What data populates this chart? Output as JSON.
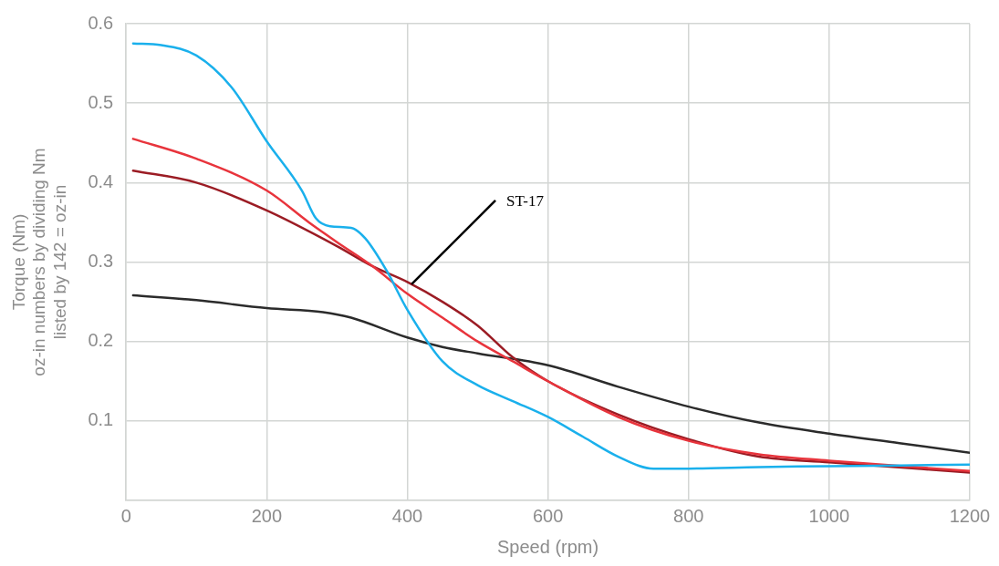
{
  "chart_data": {
    "type": "line",
    "xlabel": "Speed (rpm)",
    "ylabel": "Torque (Nm)\noz-in numbers by dividing Nm\nlisted by 142 = oz-in",
    "xlim": [
      0,
      1200
    ],
    "xticks": [
      0,
      200,
      400,
      600,
      800,
      1000,
      1200
    ],
    "ylim": [
      0,
      0.6
    ],
    "yticks": [
      {
        "value": 0,
        "label": null
      },
      0.1,
      0.2,
      0.3,
      0.4,
      0.5,
      0.6
    ],
    "grid": true,
    "legend": false,
    "marker": "none",
    "line_style": "solid",
    "annotations": [
      {
        "text": "ST-17",
        "x": 406,
        "y": 0.272
      }
    ],
    "series": [
      {
        "color": "#1ab0ec",
        "x": [
          10,
          50,
          100,
          150,
          200,
          250,
          270,
          290,
          320,
          340,
          370,
          400,
          450,
          500,
          550,
          600,
          650,
          700,
          750,
          800,
          900,
          1000,
          1200
        ],
        "values": [
          0.575,
          0.573,
          0.56,
          0.52,
          0.452,
          0.39,
          0.355,
          0.345,
          0.343,
          0.33,
          0.29,
          0.24,
          0.175,
          0.145,
          0.125,
          0.105,
          0.08,
          0.055,
          0.04,
          0.04,
          0.042,
          0.043,
          0.045
        ]
      },
      {
        "color": "#e8343c",
        "x": [
          10,
          100,
          200,
          260,
          300,
          350,
          400,
          450,
          500,
          550,
          600,
          700,
          800,
          900,
          1000,
          1200
        ],
        "values": [
          0.455,
          0.43,
          0.39,
          0.35,
          0.325,
          0.295,
          0.26,
          0.23,
          0.2,
          0.175,
          0.15,
          0.105,
          0.075,
          0.058,
          0.05,
          0.037
        ]
      },
      {
        "color": "#9b1c24",
        "x": [
          10,
          100,
          200,
          300,
          350,
          400,
          450,
          500,
          550,
          600,
          700,
          800,
          900,
          1000,
          1200
        ],
        "values": [
          0.415,
          0.4,
          0.365,
          0.32,
          0.295,
          0.275,
          0.25,
          0.22,
          0.18,
          0.15,
          0.108,
          0.077,
          0.055,
          0.048,
          0.035
        ]
      },
      {
        "color": "#2b2b2b",
        "x": [
          10,
          100,
          200,
          280,
          320,
          400,
          450,
          500,
          600,
          700,
          800,
          900,
          1000,
          1100,
          1200
        ],
        "values": [
          0.258,
          0.252,
          0.242,
          0.237,
          0.23,
          0.205,
          0.193,
          0.185,
          0.17,
          0.143,
          0.118,
          0.098,
          0.084,
          0.072,
          0.06
        ]
      }
    ]
  }
}
